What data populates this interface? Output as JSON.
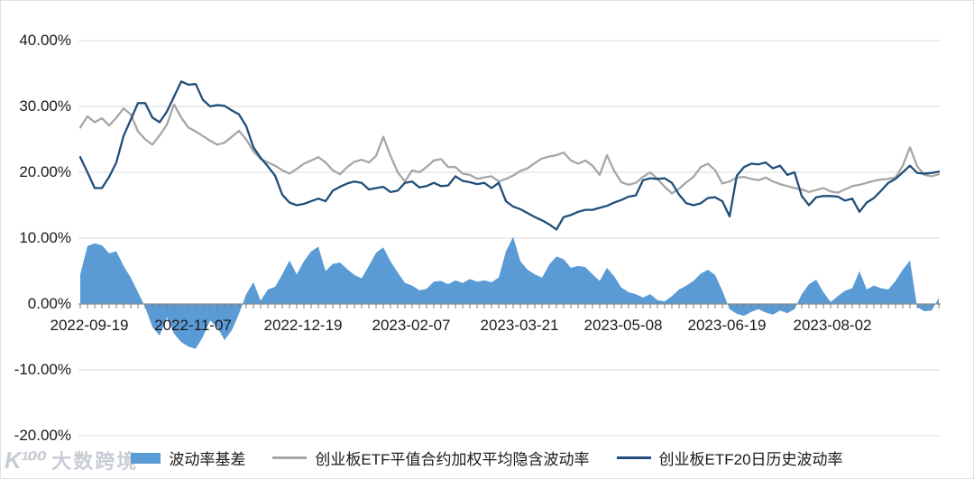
{
  "watermark": {
    "logo": "K¹⁰⁰",
    "text": "大数跨境"
  },
  "legend": {
    "items": [
      {
        "label": "波动率基差",
        "marker": "area",
        "color": "#5B9BD5"
      },
      {
        "label": "创业板ETF平值合约加权平均隐含波动率",
        "marker": "line",
        "color": "#A6A6A6"
      },
      {
        "label": "创业板ETF20日历史波动率",
        "marker": "line",
        "color": "#1F4E79"
      }
    ]
  },
  "chart_data": {
    "type": "combo",
    "title": "",
    "xlabel": "",
    "ylabel": "",
    "ylim": [
      -20,
      40
    ],
    "grid": "horizontal",
    "legend_position": "bottom",
    "colors": {
      "gridline": "#d9d9d9",
      "axis": "#8c8c8c",
      "tick": "#7f7f7f",
      "label": "#1a1a1a"
    },
    "y_ticks": [
      {
        "value": 40,
        "label": "40.00%"
      },
      {
        "value": 30,
        "label": "30.00%"
      },
      {
        "value": 20,
        "label": "20.00%"
      },
      {
        "value": 10,
        "label": "10.00%"
      },
      {
        "value": 0,
        "label": "0.00%"
      },
      {
        "value": -10,
        "label": "-10.00%"
      },
      {
        "value": -20,
        "label": "-20.00%"
      }
    ],
    "x_labels": [
      "2022-09-19",
      "2022-11-07",
      "2022-12-19",
      "2023-02-07",
      "2023-03-21",
      "2023-05-08",
      "2023-06-19",
      "2023-08-02"
    ],
    "unit": "percent",
    "series": [
      {
        "name": "波动率基差",
        "type": "area",
        "color": "#5B9BD5",
        "values": [
          4.5,
          8.8,
          9.2,
          8.9,
          7.7,
          8.0,
          5.8,
          4.0,
          1.8,
          -0.5,
          -3.5,
          -4.8,
          -2.0,
          -4.5,
          -5.8,
          -6.5,
          -6.8,
          -5.0,
          -2.5,
          -3.5,
          -5.5,
          -4.0,
          -1.5,
          1.5,
          3.3,
          0.5,
          2.2,
          2.6,
          4.5,
          6.6,
          4.5,
          6.5,
          8.0,
          8.7,
          5.0,
          6.1,
          6.3,
          5.3,
          4.4,
          3.9,
          5.8,
          7.8,
          8.6,
          6.5,
          4.8,
          3.2,
          2.8,
          2.1,
          2.3,
          3.4,
          3.5,
          3.0,
          3.6,
          3.2,
          3.8,
          3.4,
          3.6,
          3.3,
          4.0,
          8.0,
          10.2,
          6.5,
          5.2,
          4.5,
          4.0,
          6.0,
          7.2,
          6.8,
          5.5,
          5.8,
          5.6,
          4.5,
          3.5,
          5.5,
          4.2,
          2.5,
          1.8,
          1.5,
          1.0,
          1.5,
          0.6,
          0.4,
          1.2,
          2.2,
          2.8,
          3.5,
          4.6,
          5.2,
          4.4,
          2.0,
          -0.8,
          -1.5,
          -1.8,
          -1.2,
          -0.8,
          -1.3,
          -1.6,
          -1.0,
          -1.4,
          -0.8,
          1.5,
          3.0,
          3.7,
          1.8,
          0.3,
          1.2,
          2.0,
          2.4,
          5.0,
          2.2,
          2.8,
          2.4,
          2.2,
          3.5,
          5.2,
          6.6,
          -0.5,
          -1.1,
          -1.0,
          0.9
        ]
      },
      {
        "name": "创业板ETF平值合约加权平均隐含波动率",
        "type": "line",
        "color": "#A6A6A6",
        "values": [
          26.8,
          28.5,
          27.6,
          28.2,
          27.1,
          28.3,
          29.7,
          28.8,
          26.2,
          25.0,
          24.2,
          25.6,
          27.2,
          30.3,
          28.3,
          26.8,
          26.2,
          25.5,
          24.8,
          24.2,
          24.5,
          25.4,
          26.3,
          25.0,
          23.2,
          22.0,
          21.5,
          21.0,
          20.3,
          19.8,
          20.5,
          21.3,
          21.8,
          22.3,
          21.5,
          20.3,
          19.7,
          20.8,
          21.6,
          21.9,
          21.5,
          22.5,
          25.4,
          22.5,
          20.0,
          18.6,
          20.3,
          20.0,
          20.8,
          21.8,
          22.0,
          20.8,
          20.8,
          19.8,
          19.6,
          19.0,
          19.2,
          19.4,
          18.6,
          19.0,
          19.5,
          20.2,
          20.6,
          21.4,
          22.1,
          22.4,
          22.6,
          23.0,
          21.8,
          21.3,
          21.8,
          21.0,
          19.6,
          22.6,
          20.2,
          18.5,
          18.1,
          18.4,
          19.3,
          20.0,
          19.0,
          17.8,
          16.8,
          17.5,
          18.5,
          19.3,
          20.8,
          21.3,
          20.3,
          18.3,
          18.6,
          19.2,
          19.3,
          19.0,
          18.8,
          19.2,
          18.6,
          18.2,
          17.9,
          17.6,
          17.4,
          17.0,
          17.3,
          17.6,
          17.1,
          16.9,
          17.4,
          17.9,
          18.1,
          18.4,
          18.7,
          18.9,
          19.0,
          19.2,
          21.0,
          23.8,
          20.9,
          19.6,
          19.4,
          19.7
        ]
      },
      {
        "name": "创业板ETF20日历史波动率",
        "type": "line",
        "color": "#1F4E79",
        "values": [
          22.3,
          20.0,
          17.6,
          17.6,
          19.3,
          21.5,
          25.5,
          28.0,
          30.5,
          30.5,
          28.3,
          27.6,
          29.2,
          31.5,
          33.8,
          33.3,
          33.4,
          31.0,
          30.0,
          30.2,
          30.1,
          29.4,
          28.8,
          27.0,
          23.8,
          22.2,
          20.9,
          19.5,
          16.6,
          15.4,
          15.0,
          15.2,
          15.6,
          16.0,
          15.6,
          17.2,
          17.8,
          18.3,
          18.6,
          18.4,
          17.4,
          17.6,
          17.8,
          17.0,
          17.2,
          18.4,
          18.6,
          17.7,
          17.9,
          18.4,
          17.9,
          18.0,
          19.4,
          18.7,
          18.5,
          18.2,
          18.4,
          17.6,
          18.4,
          15.6,
          14.8,
          14.4,
          13.8,
          13.2,
          12.7,
          12.1,
          11.3,
          13.2,
          13.5,
          14.0,
          14.3,
          14.3,
          14.6,
          14.9,
          15.4,
          15.8,
          16.3,
          16.5,
          18.8,
          19.1,
          19.0,
          19.1,
          18.4,
          16.6,
          15.3,
          15.0,
          15.3,
          16.1,
          16.2,
          15.6,
          13.3,
          19.5,
          20.8,
          21.3,
          21.2,
          21.5,
          20.6,
          21.0,
          19.6,
          20.0,
          16.4,
          15.0,
          16.2,
          16.4,
          16.4,
          16.3,
          15.7,
          16.0,
          14.0,
          15.4,
          16.1,
          17.2,
          18.4,
          19.0,
          20.0,
          21.0,
          19.9,
          19.8,
          19.9,
          20.1
        ]
      }
    ]
  }
}
